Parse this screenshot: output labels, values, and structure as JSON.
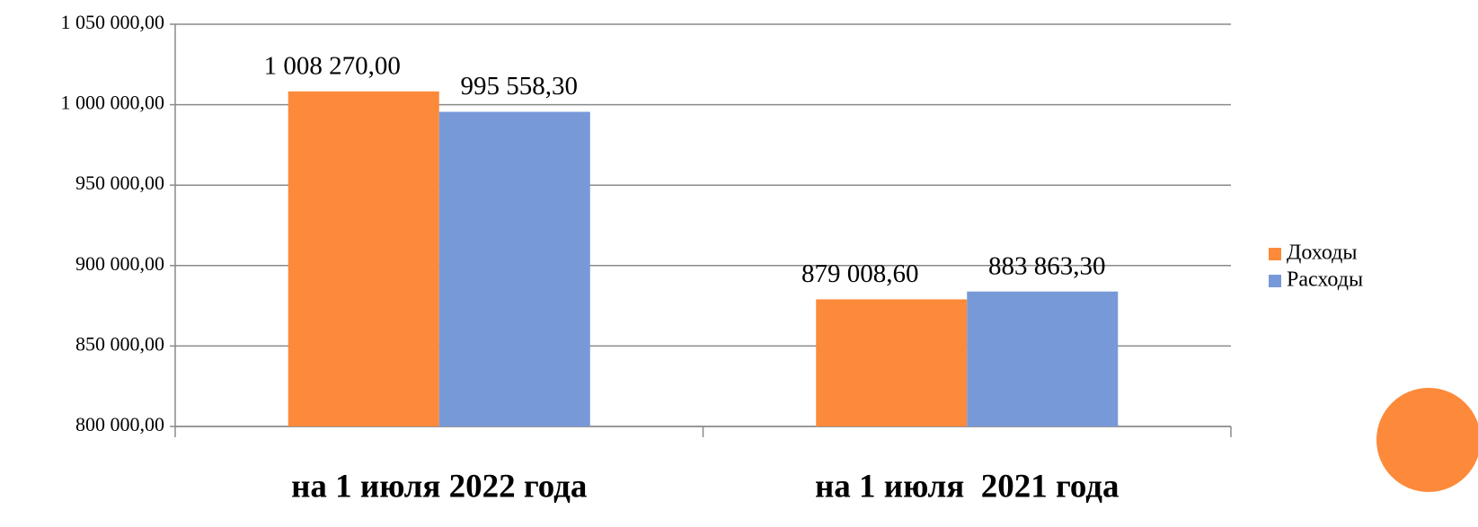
{
  "chart_data": {
    "type": "bar",
    "categories": [
      "на 1 июля 2022 года",
      "на 1 июля  2021 года"
    ],
    "series": [
      {
        "name": "Доходы",
        "color": "#fd8a3a",
        "values": [
          1008270.0,
          879008.6
        ],
        "value_labels": [
          "1 008 270,00",
          "879 008,60"
        ]
      },
      {
        "name": "Расходы",
        "color": "#7799d8",
        "values": [
          995558.3,
          883863.3
        ],
        "value_labels": [
          "995 558,30",
          "883 863,30"
        ]
      }
    ],
    "ylim": [
      800000,
      1050000
    ],
    "yticks": [
      {
        "value": 800000,
        "label": "800 000,00"
      },
      {
        "value": 850000,
        "label": "850 000,00"
      },
      {
        "value": 900000,
        "label": "900 000,00"
      },
      {
        "value": 950000,
        "label": "950 000,00"
      },
      {
        "value": 1000000,
        "label": "1 000 000,00"
      },
      {
        "value": 1050000,
        "label": "1 050 000,00"
      }
    ],
    "grid": true,
    "legend": "right"
  }
}
